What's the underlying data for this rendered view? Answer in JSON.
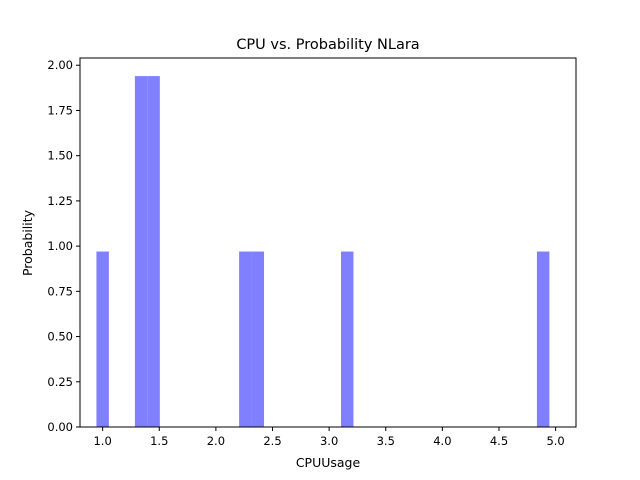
{
  "chart_data": {
    "type": "bar",
    "title": "CPU vs. Probability NLara",
    "xlabel": "CPUUsage",
    "ylabel": "Probability",
    "xlim": [
      0.8,
      5.18
    ],
    "ylim": [
      0.0,
      2.04
    ],
    "xticks": [
      "1.0",
      "1.5",
      "2.0",
      "2.5",
      "3.0",
      "3.5",
      "4.0",
      "4.5",
      "5.0"
    ],
    "yticks": [
      "0.00",
      "0.25",
      "0.50",
      "0.75",
      "1.00",
      "1.25",
      "1.50",
      "1.75",
      "2.00"
    ],
    "bin_width": 0.11,
    "bars": [
      {
        "x": 1.0,
        "value": 0.97
      },
      {
        "x": 1.34,
        "value": 1.94
      },
      {
        "x": 1.45,
        "value": 1.94
      },
      {
        "x": 2.26,
        "value": 0.97
      },
      {
        "x": 2.37,
        "value": 0.97
      },
      {
        "x": 3.16,
        "value": 0.97
      },
      {
        "x": 4.89,
        "value": 0.97
      }
    ],
    "bar_color": "#8080ff",
    "grid": false
  }
}
